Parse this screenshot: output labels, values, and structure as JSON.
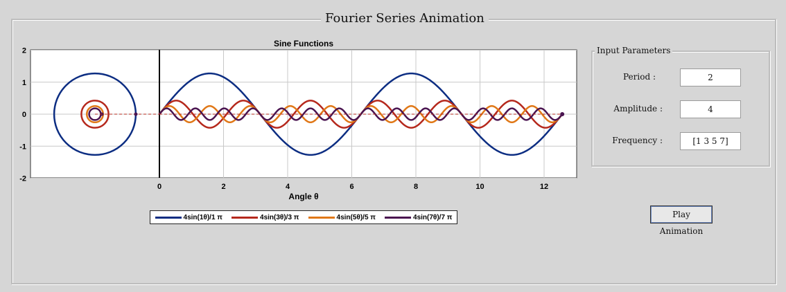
{
  "window": {
    "title": "Fourier Series Animation"
  },
  "plot": {
    "title": "Sine Functions",
    "xlabel": "Angle θ",
    "x_ticks": [
      "0",
      "2",
      "4",
      "6",
      "8",
      "10",
      "12"
    ],
    "y_ticks": [
      "2",
      "1",
      "0",
      "-1",
      "-2"
    ],
    "legend": [
      {
        "label": "4sin(1θ)/1 π",
        "color": "#0c2d82"
      },
      {
        "label": "4sin(3θ)/3 π",
        "color": "#b5281c"
      },
      {
        "label": "4sin(5θ)/5 π",
        "color": "#e07818"
      },
      {
        "label": "4sin(7θ)/7 π",
        "color": "#4a1450"
      }
    ]
  },
  "chart_data": {
    "type": "line",
    "title": "Sine Functions",
    "xlabel": "Angle θ",
    "ylabel": "",
    "xlim": [
      -4.5,
      13
    ],
    "ylim": [
      -2,
      2
    ],
    "grid": true,
    "series": [
      {
        "name": "4sin(1θ)/1 π",
        "k": 1,
        "amplitude": 1.2732,
        "color": "#0c2d82"
      },
      {
        "name": "4sin(3θ)/3 π",
        "k": 3,
        "amplitude": 0.4244,
        "color": "#b5281c"
      },
      {
        "name": "4sin(5θ)/5 π",
        "k": 5,
        "amplitude": 0.2546,
        "color": "#e07818"
      },
      {
        "name": "4sin(7θ)/7 π",
        "k": 7,
        "amplitude": 0.1819,
        "color": "#4a1450"
      }
    ],
    "x_range": [
      0,
      12.566
    ]
  },
  "input_parameters": {
    "title": "Input Parameters",
    "period_label": "Period :",
    "period_value": "2",
    "amplitude_label": "Amplitude :",
    "amplitude_value": "4",
    "frequency_label": "Frequency :",
    "frequency_value": "[1 3 5 7]"
  },
  "play_button_label": "Play Animation"
}
